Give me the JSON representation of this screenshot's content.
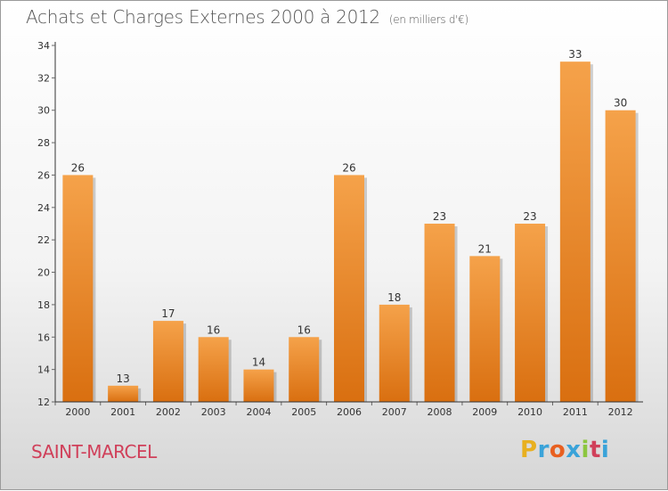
{
  "header": {
    "title": "Achats et Charges Externes 2000 à 2012",
    "unit": "(en milliers d'€)"
  },
  "footer": {
    "city": "SAINT-MARCEL",
    "logo_text": "Proxiti",
    "logo_colors": [
      "#e8b020",
      "#3aa3d9",
      "#e86020",
      "#3aa3d9",
      "#8cc63f",
      "#d0405a",
      "#3aa3d9"
    ]
  },
  "colors": {
    "bar_top": "#f5a24a",
    "bar_bottom": "#d96f10",
    "axis": "#333333",
    "grid_tick": "#666666"
  },
  "chart_data": {
    "type": "bar",
    "title": "Achats et Charges Externes 2000 à 2012",
    "subtitle": "(en milliers d'€)",
    "categories": [
      "2000",
      "2001",
      "2002",
      "2003",
      "2004",
      "2005",
      "2006",
      "2007",
      "2008",
      "2009",
      "2010",
      "2011",
      "2012"
    ],
    "values": [
      26,
      13,
      17,
      16,
      14,
      16,
      26,
      18,
      23,
      21,
      23,
      33,
      30
    ],
    "ylim": [
      12,
      34
    ],
    "yticks": [
      12,
      14,
      16,
      18,
      20,
      22,
      24,
      26,
      28,
      30,
      32,
      34
    ],
    "xlabel": "",
    "ylabel": "",
    "grid": false,
    "legend": "none"
  }
}
